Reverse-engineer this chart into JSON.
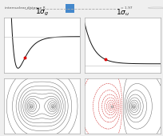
{
  "title_g": "1$\\sigma_g$",
  "title_u": "1$\\sigma_u$",
  "slider_label": "internuclear distance R",
  "slider_value": "= 1.97",
  "bg_color": "#efefef",
  "panel_bg": "#ffffff",
  "red_dot_color": "#dd0000",
  "curve_color": "#111111",
  "contour_color_bonding": "#666666",
  "contour_color_antibonding_neg": "#cc2222",
  "contour_color_antibonding_pos": "#666666",
  "slider_blue": "#4488cc",
  "border_color": "#aaaaaa"
}
